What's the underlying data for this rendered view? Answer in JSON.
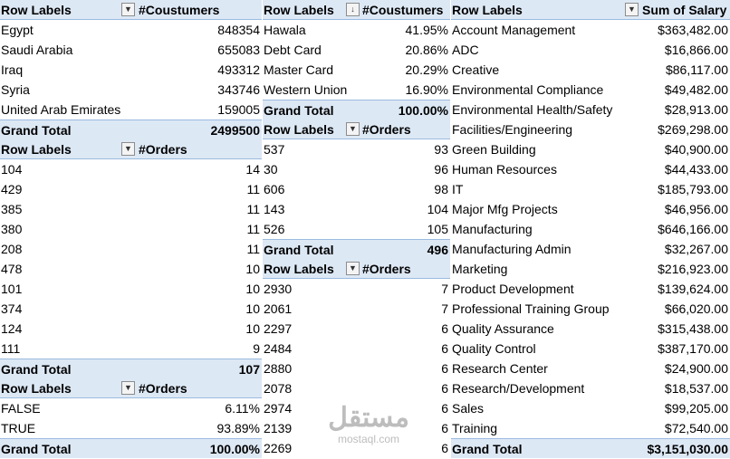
{
  "pivot_customers_by_country": {
    "header": {
      "row_labels": "Row Labels",
      "value_label": "#Coustumers",
      "filter_icon": "filter-sort-icon"
    },
    "rows": [
      {
        "label": "Egypt",
        "value": "848354"
      },
      {
        "label": "Saudi Arabia",
        "value": "655083"
      },
      {
        "label": "Iraq",
        "value": "493312"
      },
      {
        "label": "Syria",
        "value": "343746"
      },
      {
        "label": "United Arab Emirates",
        "value": "159005"
      }
    ],
    "grand_total": {
      "label": "Grand Total",
      "value": "2499500"
    }
  },
  "pivot_orders_by_id": {
    "header": {
      "row_labels": "Row Labels",
      "value_label": "#Orders",
      "filter_icon": "filter-sort-icon"
    },
    "rows": [
      {
        "label": "104",
        "value": "14"
      },
      {
        "label": "429",
        "value": "11"
      },
      {
        "label": "385",
        "value": "11"
      },
      {
        "label": "380",
        "value": "11"
      },
      {
        "label": "208",
        "value": "11"
      },
      {
        "label": "478",
        "value": "10"
      },
      {
        "label": "101",
        "value": "10"
      },
      {
        "label": "374",
        "value": "10"
      },
      {
        "label": "124",
        "value": "10"
      },
      {
        "label": "111",
        "value": "9"
      }
    ],
    "grand_total": {
      "label": "Grand Total",
      "value": "107"
    }
  },
  "pivot_orders_by_flag": {
    "header": {
      "row_labels": "Row Labels",
      "value_label": "#Orders",
      "filter_icon": "dropdown-icon"
    },
    "rows": [
      {
        "label": "FALSE",
        "value": "6.11%"
      },
      {
        "label": "TRUE",
        "value": "93.89%"
      }
    ],
    "grand_total": {
      "label": "Grand Total",
      "value": "100.00%"
    }
  },
  "pivot_customers_by_payment": {
    "header": {
      "row_labels": "Row Labels",
      "value_label": "#Coustumers",
      "filter_icon": "sort-descending-icon"
    },
    "rows": [
      {
        "label": "Hawala",
        "value": "41.95%"
      },
      {
        "label": "Debt Card",
        "value": "20.86%"
      },
      {
        "label": "Master Card",
        "value": "20.29%"
      },
      {
        "label": "Western Union",
        "value": "16.90%"
      }
    ],
    "grand_total": {
      "label": "Grand Total",
      "value": "100.00%"
    }
  },
  "pivot_orders_asc": {
    "header": {
      "row_labels": "Row Labels",
      "value_label": "#Orders",
      "filter_icon": "filter-sort-icon"
    },
    "rows": [
      {
        "label": "537",
        "value": "93"
      },
      {
        "label": "30",
        "value": "96"
      },
      {
        "label": "606",
        "value": "98"
      },
      {
        "label": "143",
        "value": "104"
      },
      {
        "label": "526",
        "value": "105"
      }
    ],
    "grand_total": {
      "label": "Grand Total",
      "value": "496"
    }
  },
  "pivot_orders_desc": {
    "header": {
      "row_labels": "Row Labels",
      "value_label": "#Orders",
      "filter_icon": "filter-sort-icon"
    },
    "rows": [
      {
        "label": "2930",
        "value": "7"
      },
      {
        "label": "2061",
        "value": "7"
      },
      {
        "label": "2297",
        "value": "6"
      },
      {
        "label": "2484",
        "value": "6"
      },
      {
        "label": "2880",
        "value": "6"
      },
      {
        "label": "2078",
        "value": "6"
      },
      {
        "label": "2974",
        "value": "6"
      },
      {
        "label": "2139",
        "value": "6"
      },
      {
        "label": "2269",
        "value": "6"
      }
    ]
  },
  "pivot_salary_by_department": {
    "header": {
      "row_labels": "Row Labels",
      "value_label": "Sum of Salary",
      "filter_icon": "dropdown-icon"
    },
    "rows": [
      {
        "label": "Account Management",
        "value": "$363,482.00"
      },
      {
        "label": "ADC",
        "value": "$16,866.00"
      },
      {
        "label": "Creative",
        "value": "$86,117.00"
      },
      {
        "label": "Environmental Compliance",
        "value": "$49,482.00"
      },
      {
        "label": "Environmental Health/Safety",
        "value": "$28,913.00"
      },
      {
        "label": "Facilities/Engineering",
        "value": "$269,298.00"
      },
      {
        "label": "Green Building",
        "value": "$40,900.00"
      },
      {
        "label": "Human Resources",
        "value": "$44,433.00"
      },
      {
        "label": "IT",
        "value": "$185,793.00"
      },
      {
        "label": "Major Mfg Projects",
        "value": "$46,956.00"
      },
      {
        "label": "Manufacturing",
        "value": "$646,166.00"
      },
      {
        "label": "Manufacturing Admin",
        "value": "$32,267.00"
      },
      {
        "label": "Marketing",
        "value": "$216,923.00"
      },
      {
        "label": "Product Development",
        "value": "$139,624.00"
      },
      {
        "label": "Professional Training Group",
        "value": "$66,020.00"
      },
      {
        "label": "Quality Assurance",
        "value": "$315,438.00"
      },
      {
        "label": "Quality Control",
        "value": "$387,170.00"
      },
      {
        "label": "Research Center",
        "value": "$24,900.00"
      },
      {
        "label": "Research/Development",
        "value": "$18,537.00"
      },
      {
        "label": "Sales",
        "value": "$99,205.00"
      },
      {
        "label": "Training",
        "value": "$72,540.00"
      }
    ],
    "grand_total": {
      "label": "Grand Total",
      "value": "$3,151,030.00"
    }
  },
  "watermark": {
    "arabic": "مستقل",
    "site": "mostaql.com"
  }
}
